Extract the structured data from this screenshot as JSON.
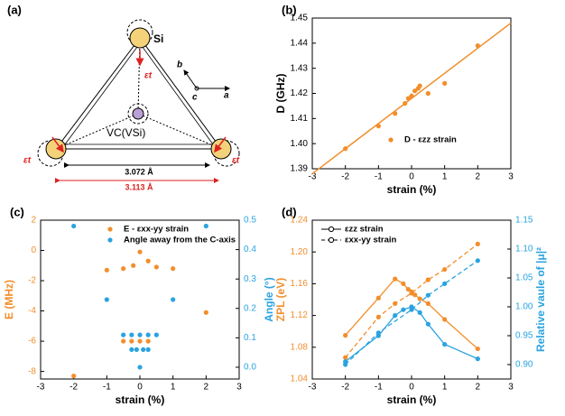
{
  "diagram": {
    "panel_label": "(a)",
    "atom_label": "Si",
    "strain_labels": [
      "εt",
      "εt",
      "εt"
    ],
    "axis_labels": [
      "b",
      "c",
      "a"
    ],
    "vacancy_label": "VC(VSi)",
    "inner_distance": "3.072 Å",
    "outer_distance": "3.113 Å"
  },
  "chart_data": [
    {
      "type": "scatter",
      "panel_label": "(b)",
      "xlabel": "strain (%)",
      "ylabel": "D (GHz)",
      "xlim": [
        -3,
        3
      ],
      "xticks": [
        -3,
        -2,
        -1,
        0,
        1,
        2,
        3
      ],
      "ylim": [
        1.39,
        1.45
      ],
      "yticks": [
        1.39,
        {
          "value": 1.4,
          "label": "1.40"
        },
        1.41,
        1.42,
        1.43,
        1.44,
        1.45
      ],
      "series": [
        {
          "name": "D - εzz strain",
          "color": "#f28e2b",
          "x": [
            -2,
            -1,
            -0.5,
            -0.2,
            -0.1,
            0,
            0.1,
            0.2,
            0.25,
            0.5,
            1,
            2
          ],
          "values": [
            1.398,
            1.407,
            1.412,
            1.416,
            1.418,
            1.419,
            1.421,
            1.422,
            1.423,
            1.42,
            1.424,
            1.439
          ]
        }
      ],
      "fit": {
        "color": "#f28e2b",
        "x": [
          -3,
          3
        ],
        "values": [
          1.388,
          1.448
        ]
      },
      "legend": "lower right"
    },
    {
      "type": "scatter",
      "panel_label": "(c)",
      "xlabel": "strain (%)",
      "ylabel": "E (MHz)",
      "y2label": "Angle (°)",
      "y_color": "#f28e2b",
      "y2_color": "#29a3e0",
      "xlim": [
        -3,
        3
      ],
      "xticks": [
        -3,
        -2,
        -1,
        0,
        1,
        2,
        3
      ],
      "ylim": [
        -8.5,
        2
      ],
      "yticks": [
        -8,
        -6,
        -4,
        -2,
        0,
        2
      ],
      "y2lim": [
        -0.04,
        0.5
      ],
      "y2ticks": [
        {
          "value": 0,
          "label": "0.0"
        },
        0.1,
        0.2,
        0.3,
        0.4,
        0.5
      ],
      "series": [
        {
          "name": "E - εxx-yy strain",
          "color": "#f28e2b",
          "x": [
            -2,
            -1,
            -0.5,
            -0.2,
            0,
            0.25,
            0.5,
            1,
            2,
            -0.5,
            -0.25,
            0,
            0.25
          ],
          "values": [
            -8.3,
            -1.3,
            -1.2,
            -1.0,
            -0.1,
            -0.7,
            -1.1,
            -1.2,
            -4.1,
            -6.0,
            -6.0,
            -6.0,
            -6.0
          ]
        },
        {
          "name": "Angle away from the C-axis",
          "color": "#29a3e0",
          "axis": "y2",
          "x": [
            -2,
            -1,
            -0.5,
            -0.25,
            -0.1,
            0,
            0.1,
            0.25,
            0.5,
            1,
            2,
            -0.25,
            0.25,
            0
          ],
          "values": [
            0.48,
            0.23,
            0.11,
            0.06,
            0.06,
            0.0,
            0.06,
            0.06,
            0.11,
            0.23,
            0.48,
            0.11,
            0.11,
            0.11
          ]
        }
      ],
      "legend": "upper center"
    },
    {
      "type": "line",
      "panel_label": "(d)",
      "xlabel": "strain (%)",
      "ylabel": "ZPL (eV)",
      "y2label": "Relative vaule of |μ|²",
      "y_color": "#f28e2b",
      "y2_color": "#29a3e0",
      "xlim": [
        -3,
        3
      ],
      "xticks": [
        -3,
        -2,
        -1,
        0,
        1,
        2,
        3
      ],
      "ylim": [
        1.04,
        1.24
      ],
      "yticks": [
        1.04,
        1.08,
        1.12,
        1.16,
        {
          "value": 1.2,
          "label": "1.20"
        },
        1.24
      ],
      "y2lim": [
        0.875,
        1.15
      ],
      "y2ticks": [
        {
          "value": 0.9,
          "label": "0.90"
        },
        0.95,
        {
          "value": 1,
          "label": "1.00"
        },
        1.05,
        {
          "value": 1.1,
          "label": "1.10"
        },
        1.15
      ],
      "series": [
        {
          "name": "εzz strain",
          "color": "#f28e2b",
          "dash": false,
          "x": [
            -2,
            -1,
            -0.5,
            -0.25,
            -0.1,
            0,
            0.1,
            0.25,
            0.5,
            1,
            2
          ],
          "values": [
            1.095,
            1.142,
            1.166,
            1.16,
            1.153,
            1.15,
            1.146,
            1.141,
            1.135,
            1.115,
            1.078
          ]
        },
        {
          "name": "εxx-yy strain",
          "color": "#f28e2b",
          "dash": true,
          "x": [
            -2,
            -1,
            -0.5,
            0,
            0.5,
            1,
            2
          ],
          "values": [
            1.067,
            1.118,
            1.135,
            1.148,
            1.165,
            1.178,
            1.21
          ]
        },
        {
          "color": "#29a3e0",
          "dash": false,
          "axis": "y2",
          "x": [
            -2,
            -1,
            -0.5,
            -0.25,
            0,
            0.25,
            0.5,
            1,
            2
          ],
          "values": [
            0.905,
            0.95,
            0.985,
            0.995,
            1.0,
            0.99,
            0.97,
            0.935,
            0.91
          ]
        },
        {
          "color": "#29a3e0",
          "dash": true,
          "axis": "y2",
          "x": [
            -2,
            -1,
            0,
            0.5,
            1,
            2
          ],
          "values": [
            0.9,
            0.955,
            0.995,
            1.02,
            1.04,
            1.08
          ]
        }
      ],
      "legend": "upper left"
    }
  ]
}
